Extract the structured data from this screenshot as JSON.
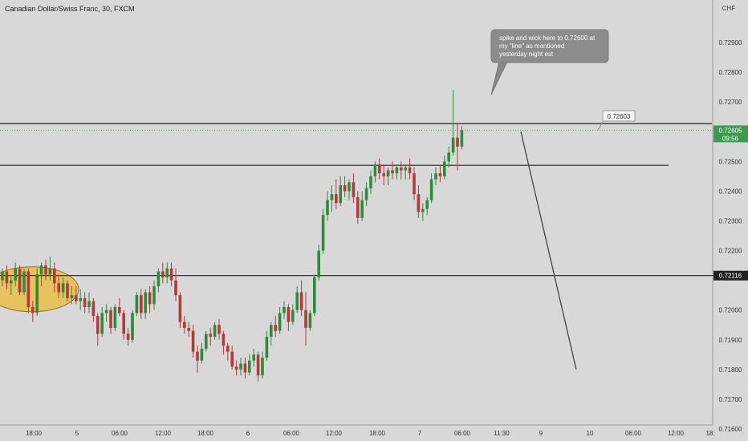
{
  "title": "Canadian Dollar/Swiss Franc, 30, FXCM",
  "colors": {
    "bull": "#2e8b3c",
    "bear": "#b23a3a",
    "background": "#d8d8d8",
    "line": "#222222",
    "price_label": "#3a9b4f",
    "highlight": "#e8c25a"
  },
  "chart_data": {
    "type": "candlestick",
    "yaxis_unit": "CHF",
    "ylim": [
      0.716,
      0.73
    ],
    "yticks": [
      0.729,
      0.728,
      0.727,
      0.725,
      0.724,
      0.723,
      0.722,
      0.72,
      0.719,
      0.718,
      0.717,
      0.716
    ],
    "xticks": [
      "18:00",
      "5",
      "06:00",
      "12:00",
      "18:00",
      "6",
      "06:00",
      "12:00",
      "18:00",
      "7",
      "06:00",
      "11:30",
      "9",
      "10",
      "06:00",
      "12:00",
      "18:"
    ],
    "horizontal_lines": [
      0.72627,
      0.72487,
      0.72116
    ],
    "current_price": "0.72605",
    "countdown": "09:56",
    "line_label_price": "0.72116",
    "marker_price": "0.72603",
    "annotation": [
      "spike and wick here to 0.72600 at",
      "my \"line\" as mentioned",
      "yesterday night est"
    ],
    "trend_line": {
      "from": 0.726,
      "to": 0.718
    },
    "candles": [
      [
        0.721,
        0.7214,
        0.7208,
        0.7213
      ],
      [
        0.7213,
        0.7215,
        0.7207,
        0.7209
      ],
      [
        0.7209,
        0.7212,
        0.7205,
        0.721
      ],
      [
        0.721,
        0.7216,
        0.7208,
        0.7214
      ],
      [
        0.7214,
        0.7215,
        0.7205,
        0.7206
      ],
      [
        0.7206,
        0.7214,
        0.7205,
        0.7213
      ],
      [
        0.7213,
        0.7214,
        0.7199,
        0.7201
      ],
      [
        0.7201,
        0.7203,
        0.7196,
        0.7199
      ],
      [
        0.7199,
        0.7214,
        0.7198,
        0.7212
      ],
      [
        0.7212,
        0.7216,
        0.7208,
        0.7215
      ],
      [
        0.7215,
        0.7217,
        0.721,
        0.7212
      ],
      [
        0.7212,
        0.7218,
        0.721,
        0.7214
      ],
      [
        0.7214,
        0.7216,
        0.7206,
        0.7209
      ],
      [
        0.7209,
        0.7212,
        0.7204,
        0.7206
      ],
      [
        0.7206,
        0.7211,
        0.7204,
        0.7209
      ],
      [
        0.7209,
        0.721,
        0.7203,
        0.7204
      ],
      [
        0.7204,
        0.7208,
        0.7202,
        0.7205
      ],
      [
        0.7205,
        0.7208,
        0.7202,
        0.7203
      ],
      [
        0.7203,
        0.7207,
        0.72,
        0.7204
      ],
      [
        0.7204,
        0.7206,
        0.7199,
        0.7201
      ],
      [
        0.7201,
        0.7206,
        0.7199,
        0.7203
      ],
      [
        0.7203,
        0.7204,
        0.7196,
        0.7198
      ],
      [
        0.7198,
        0.7199,
        0.7188,
        0.7192
      ],
      [
        0.7192,
        0.7201,
        0.7191,
        0.7199
      ],
      [
        0.7199,
        0.7202,
        0.7196,
        0.72
      ],
      [
        0.72,
        0.7201,
        0.7192,
        0.7194
      ],
      [
        0.7194,
        0.7202,
        0.7193,
        0.7201
      ],
      [
        0.7201,
        0.7204,
        0.7198,
        0.7199
      ],
      [
        0.7199,
        0.72,
        0.719,
        0.7192
      ],
      [
        0.7192,
        0.7194,
        0.7188,
        0.719
      ],
      [
        0.719,
        0.72,
        0.7189,
        0.7199
      ],
      [
        0.7199,
        0.7206,
        0.7198,
        0.7205
      ],
      [
        0.7205,
        0.7207,
        0.7197,
        0.7199
      ],
      [
        0.7199,
        0.7207,
        0.7197,
        0.7206
      ],
      [
        0.7206,
        0.7208,
        0.7199,
        0.7202
      ],
      [
        0.7202,
        0.721,
        0.72,
        0.7208
      ],
      [
        0.7208,
        0.7214,
        0.7206,
        0.7213
      ],
      [
        0.7213,
        0.7216,
        0.7209,
        0.7211
      ],
      [
        0.7211,
        0.7216,
        0.7209,
        0.7214
      ],
      [
        0.7214,
        0.7216,
        0.7208,
        0.721
      ],
      [
        0.721,
        0.7214,
        0.7203,
        0.7205
      ],
      [
        0.7205,
        0.7206,
        0.7194,
        0.7196
      ],
      [
        0.7196,
        0.7198,
        0.7192,
        0.7194
      ],
      [
        0.7194,
        0.7196,
        0.7191,
        0.7193
      ],
      [
        0.7193,
        0.7195,
        0.7184,
        0.7186
      ],
      [
        0.7186,
        0.7188,
        0.7179,
        0.7183
      ],
      [
        0.7183,
        0.7189,
        0.7182,
        0.7187
      ],
      [
        0.7187,
        0.7193,
        0.7186,
        0.7192
      ],
      [
        0.7192,
        0.7194,
        0.7188,
        0.7191
      ],
      [
        0.7191,
        0.7196,
        0.719,
        0.7195
      ],
      [
        0.7195,
        0.7197,
        0.719,
        0.7192
      ],
      [
        0.7192,
        0.7193,
        0.7185,
        0.7188
      ],
      [
        0.7188,
        0.7189,
        0.7183,
        0.7186
      ],
      [
        0.7186,
        0.7188,
        0.718,
        0.7181
      ],
      [
        0.7181,
        0.7183,
        0.7178,
        0.718
      ],
      [
        0.718,
        0.7184,
        0.7178,
        0.7182
      ],
      [
        0.7182,
        0.7184,
        0.7177,
        0.7179
      ],
      [
        0.7179,
        0.7185,
        0.7178,
        0.7183
      ],
      [
        0.7183,
        0.7187,
        0.7181,
        0.7185
      ],
      [
        0.7185,
        0.7186,
        0.7176,
        0.7178
      ],
      [
        0.7178,
        0.7186,
        0.7177,
        0.7184
      ],
      [
        0.7184,
        0.7193,
        0.7183,
        0.7191
      ],
      [
        0.7191,
        0.7196,
        0.7188,
        0.7195
      ],
      [
        0.7195,
        0.7198,
        0.7191,
        0.7193
      ],
      [
        0.7193,
        0.7201,
        0.7192,
        0.7199
      ],
      [
        0.7199,
        0.7203,
        0.7197,
        0.7201
      ],
      [
        0.7201,
        0.7202,
        0.7193,
        0.7196
      ],
      [
        0.7196,
        0.7202,
        0.7195,
        0.72
      ],
      [
        0.72,
        0.7208,
        0.7199,
        0.7206
      ],
      [
        0.7206,
        0.721,
        0.7198,
        0.72
      ],
      [
        0.72,
        0.7206,
        0.7188,
        0.7194
      ],
      [
        0.7194,
        0.72,
        0.7193,
        0.7199
      ],
      [
        0.7199,
        0.7212,
        0.7198,
        0.7211
      ],
      [
        0.7211,
        0.7222,
        0.721,
        0.722
      ],
      [
        0.722,
        0.7234,
        0.7219,
        0.7232
      ],
      [
        0.7232,
        0.724,
        0.723,
        0.7237
      ],
      [
        0.7237,
        0.7242,
        0.7233,
        0.7239
      ],
      [
        0.7239,
        0.7244,
        0.7234,
        0.7236
      ],
      [
        0.7236,
        0.7245,
        0.7235,
        0.7242
      ],
      [
        0.7242,
        0.7245,
        0.7238,
        0.724
      ],
      [
        0.724,
        0.7244,
        0.7237,
        0.7243
      ],
      [
        0.7243,
        0.7246,
        0.7236,
        0.7238
      ],
      [
        0.7238,
        0.724,
        0.7229,
        0.7231
      ],
      [
        0.7231,
        0.724,
        0.723,
        0.7237
      ],
      [
        0.7237,
        0.7243,
        0.7235,
        0.7241
      ],
      [
        0.7241,
        0.7247,
        0.7239,
        0.7245
      ],
      [
        0.7245,
        0.725,
        0.7243,
        0.7249
      ],
      [
        0.7249,
        0.7251,
        0.7244,
        0.7246
      ],
      [
        0.7246,
        0.7249,
        0.7242,
        0.7245
      ],
      [
        0.7245,
        0.7248,
        0.7242,
        0.7247
      ],
      [
        0.7247,
        0.725,
        0.7244,
        0.7246
      ],
      [
        0.7246,
        0.7249,
        0.7244,
        0.7248
      ],
      [
        0.7248,
        0.725,
        0.7244,
        0.7247
      ],
      [
        0.7247,
        0.7249,
        0.7244,
        0.7248
      ],
      [
        0.7248,
        0.7251,
        0.7244,
        0.7246
      ],
      [
        0.7246,
        0.7248,
        0.7237,
        0.7239
      ],
      [
        0.7239,
        0.7242,
        0.7231,
        0.7233
      ],
      [
        0.7233,
        0.7236,
        0.723,
        0.7234
      ],
      [
        0.7234,
        0.7238,
        0.7232,
        0.7237
      ],
      [
        0.7237,
        0.7246,
        0.7236,
        0.7244
      ],
      [
        0.7244,
        0.7248,
        0.7242,
        0.7246
      ],
      [
        0.7246,
        0.7249,
        0.7243,
        0.7245
      ],
      [
        0.7245,
        0.7252,
        0.7244,
        0.725
      ],
      [
        0.725,
        0.7255,
        0.7248,
        0.7253
      ],
      [
        0.7253,
        0.7274,
        0.7252,
        0.7258
      ],
      [
        0.7258,
        0.7263,
        0.7247,
        0.7255
      ],
      [
        0.7255,
        0.7262,
        0.7254,
        0.72605
      ]
    ]
  }
}
